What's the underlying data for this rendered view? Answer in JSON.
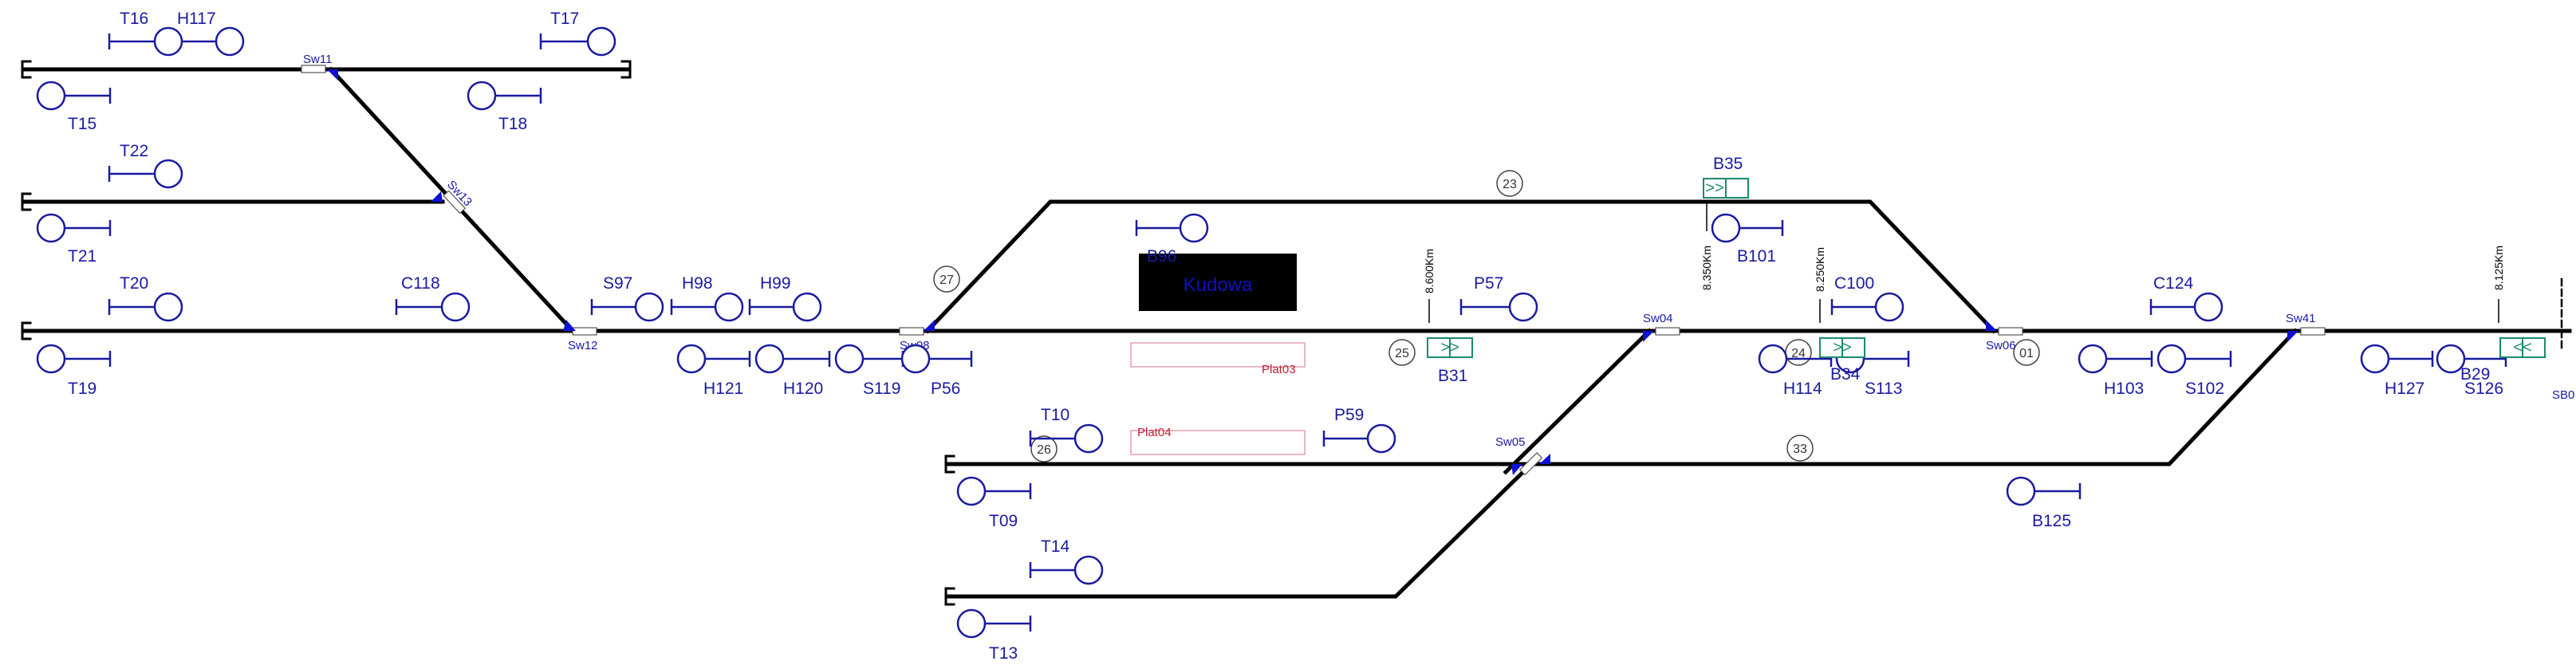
{
  "station": {
    "name": "Kudowa",
    "box_color": "#000000",
    "text_color": "#1010c0"
  },
  "colors": {
    "track": "#000000",
    "signal": "#1a1aa0",
    "switch": "#1010d0",
    "platform": "#e0a0b0",
    "indicator": "#1a8a70"
  },
  "signals": {
    "T16": "T16",
    "H117": "H117",
    "T17": "T17",
    "T15": "T15",
    "T18": "T18",
    "T22": "T22",
    "T21": "T21",
    "T20": "T20",
    "C118": "C118",
    "T19": "T19",
    "S97": "S97",
    "H98": "H98",
    "H99": "H99",
    "H121": "H121",
    "H120": "H120",
    "S119": "S119",
    "P56": "P56",
    "B96": "B96",
    "P57": "P57",
    "B101": "B101",
    "C100": "C100",
    "H114": "H114",
    "S113": "S113",
    "C124": "C124",
    "H103": "H103",
    "S102": "S102",
    "H127": "H127",
    "S126": "S126",
    "T10": "T10",
    "P59": "P59",
    "T09": "T09",
    "B125": "B125",
    "T14": "T14",
    "T13": "T13",
    "B35": "B35",
    "B31": "B31",
    "B34": "B34",
    "B29": "B29",
    "SB0": "SB0"
  },
  "switches": {
    "sw11": "Sw11",
    "sw13": "Sw13",
    "sw12": "Sw12",
    "sw08": "Sw08",
    "sw04": "Sw04",
    "sw05": "Sw05",
    "sw06": "Sw06",
    "sw41": "Sw41"
  },
  "blocks": {
    "b23": "23",
    "b27": "27",
    "b25": "25",
    "b24": "24",
    "b01": "01",
    "b26": "26",
    "b33": "33"
  },
  "platforms": {
    "plat03": "Plat03",
    "plat04": "Plat04"
  },
  "km_markers": {
    "km1": "8.600Km",
    "km2": "8.350Km",
    "km3": "8.250Km",
    "km4": "8.125Km"
  },
  "indicators": {
    "b35": ">>",
    "b31": ">>",
    "b34": ">>",
    "b29": "<<"
  }
}
